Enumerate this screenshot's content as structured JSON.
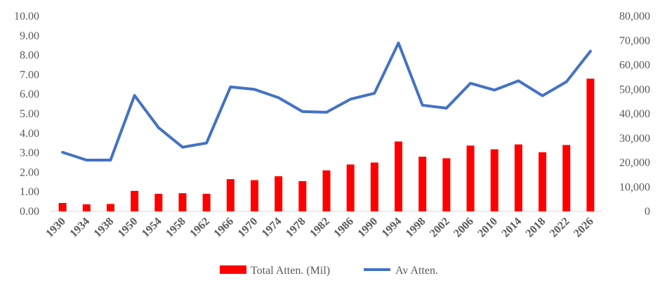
{
  "chart_data": {
    "type": "bar",
    "title": "",
    "xlabel": "",
    "ylabel": "",
    "ylim": [
      0,
      10
    ],
    "y2lim": [
      0,
      80000
    ],
    "y_tick_labels": [
      "0.00",
      "1.00",
      "2.00",
      "3.00",
      "4.00",
      "5.00",
      "6.00",
      "7.00",
      "8.00",
      "9.00",
      "10.00"
    ],
    "y2_tick_labels": [
      "0",
      "10,000",
      "20,000",
      "30,000",
      "40,000",
      "50,000",
      "60,000",
      "70,000",
      "80,000"
    ],
    "grid": false,
    "legend_position": "bottom",
    "categories": [
      "1930",
      "1934",
      "1938",
      "1950",
      "1954",
      "1958",
      "1962",
      "1966",
      "1970",
      "1974",
      "1978",
      "1982",
      "1986",
      "1990",
      "1994",
      "1998",
      "2002",
      "2006",
      "2010",
      "2014",
      "2018",
      "2022",
      "2026"
    ],
    "series": [
      {
        "name": "Total Atten. (Mil)",
        "type": "bar",
        "axis": "left",
        "color": "#ff0000",
        "values": [
          0.43,
          0.36,
          0.38,
          1.05,
          0.9,
          0.93,
          0.9,
          1.65,
          1.6,
          1.8,
          1.55,
          2.1,
          2.4,
          2.5,
          3.58,
          2.8,
          2.72,
          3.37,
          3.18,
          3.43,
          3.03,
          3.4,
          6.8
        ]
      },
      {
        "name": "Av Atten.",
        "type": "line",
        "axis": "right",
        "color": "#4472c4",
        "values": [
          24200,
          21000,
          21000,
          47500,
          34300,
          26300,
          28000,
          51000,
          50000,
          46600,
          40900,
          40600,
          46000,
          48400,
          69000,
          43500,
          42300,
          52500,
          49700,
          53500,
          47400,
          53100,
          65600
        ]
      }
    ]
  }
}
